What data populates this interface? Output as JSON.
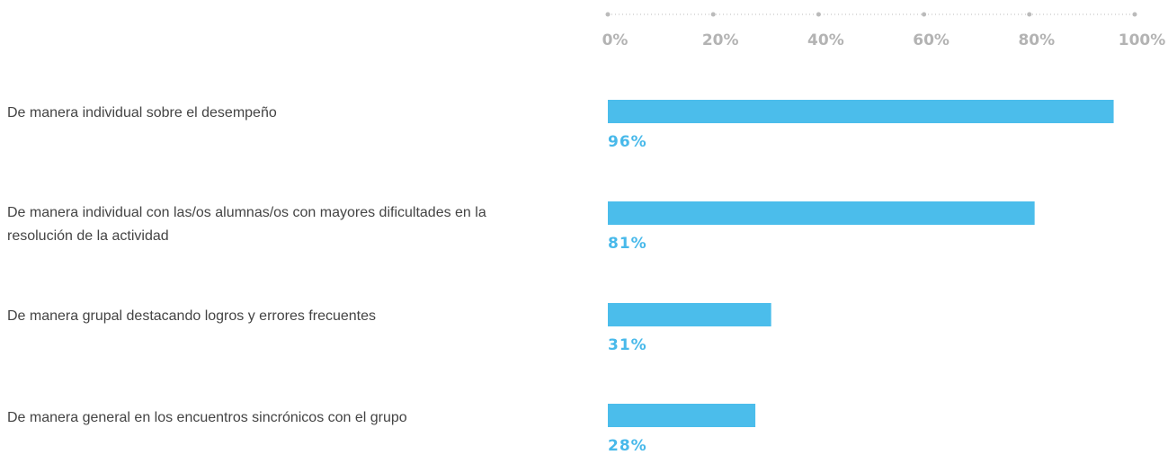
{
  "chart_data": {
    "type": "bar",
    "orientation": "horizontal",
    "categories": [
      "De manera individual sobre el desempeño",
      "De manera individual con las/os alumnas/os con mayores dificultades en la resolución de la actividad",
      "De manera grupal destacando logros y errores frecuentes",
      "De manera general en los encuentros sincrónicos con el grupo"
    ],
    "values": [
      96,
      81,
      31,
      28
    ],
    "value_labels": [
      "96%",
      "81%",
      "31%",
      "28%"
    ],
    "color": "#4bbdeb",
    "xlim": [
      0,
      100
    ],
    "xticks": [
      {
        "value": 0,
        "label": "0%"
      },
      {
        "value": 20,
        "label": "20%"
      },
      {
        "value": 40,
        "label": "40%"
      },
      {
        "value": 60,
        "label": "60%"
      },
      {
        "value": 80,
        "label": "80%"
      },
      {
        "value": 100,
        "label": "100%"
      }
    ]
  }
}
